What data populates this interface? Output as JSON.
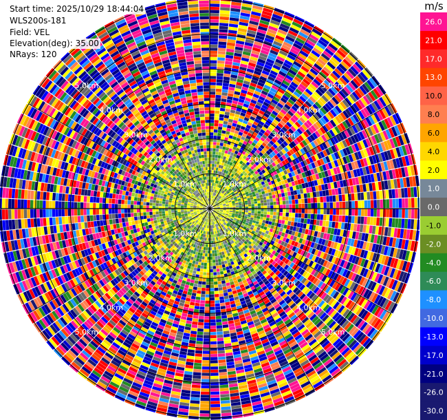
{
  "header": {
    "start_time": "Start time: 2025/10/29 18:44:04",
    "site": "WLS200s-181",
    "field": "Field: VEL",
    "elevation": "Elevation(deg): 35.00",
    "nrays": "NRays: 120"
  },
  "chart_data": {
    "type": "heatmap",
    "subtype": "polar-ppi",
    "n_rays": 120,
    "max_range_km": 6.0,
    "ring_labels": [
      "1.0km",
      "2.0km",
      "3.0km",
      "4.0km",
      "5.0km"
    ],
    "colorbar": {
      "title": "m/s",
      "placement": "right",
      "bins": [
        {
          "label": "26.0",
          "color": "#ff1493"
        },
        {
          "label": "21.0",
          "color": "#ff0000"
        },
        {
          "label": "17.0",
          "color": "#ff2a2a"
        },
        {
          "label": "13.0",
          "color": "#ff4500"
        },
        {
          "label": "10.0",
          "color": "#ff6347"
        },
        {
          "label": "8.0",
          "color": "#ff7f50"
        },
        {
          "label": "6.0",
          "color": "#ffa500"
        },
        {
          "label": "4.0",
          "color": "#ffd700"
        },
        {
          "label": "2.0",
          "color": "#ffff00"
        },
        {
          "label": "1.0",
          "color": "#778899"
        },
        {
          "label": "0.0",
          "color": "#696969"
        },
        {
          "label": "-1.0",
          "color": "#9acd32"
        },
        {
          "label": "-2.0",
          "color": "#6b8e23"
        },
        {
          "label": "-4.0",
          "color": "#228b22"
        },
        {
          "label": "-6.0",
          "color": "#2e8b57"
        },
        {
          "label": "-8.0",
          "color": "#1e90ff"
        },
        {
          "label": "-10.0",
          "color": "#4169e1"
        },
        {
          "label": "-13.0",
          "color": "#0000ff"
        },
        {
          "label": "-17.0",
          "color": "#0000cd"
        },
        {
          "label": "-21.0",
          "color": "#000080"
        },
        {
          "label": "-26.0",
          "color": "#191970"
        },
        {
          "label": "-30.0",
          "color": "#191970"
        }
      ]
    },
    "zones": [
      {
        "from_km": 0.0,
        "to_km": 0.6,
        "palette_indices": [
          8,
          8,
          8,
          9,
          10,
          11,
          11
        ]
      },
      {
        "from_km": 0.6,
        "to_km": 1.6,
        "palette_indices": [
          8,
          9,
          10,
          11,
          11,
          12,
          13,
          7,
          14
        ]
      },
      {
        "from_km": 1.6,
        "to_km": 2.2,
        "palette_indices": [
          8,
          7,
          9,
          11,
          12,
          13,
          18,
          19,
          6,
          0
        ]
      },
      {
        "from_km": 2.2,
        "to_km": 6.0,
        "palette_indices": [
          0,
          1,
          3,
          5,
          6,
          7,
          8,
          10,
          13,
          15,
          17,
          18,
          19,
          20,
          0,
          19,
          18,
          1
        ]
      }
    ]
  }
}
